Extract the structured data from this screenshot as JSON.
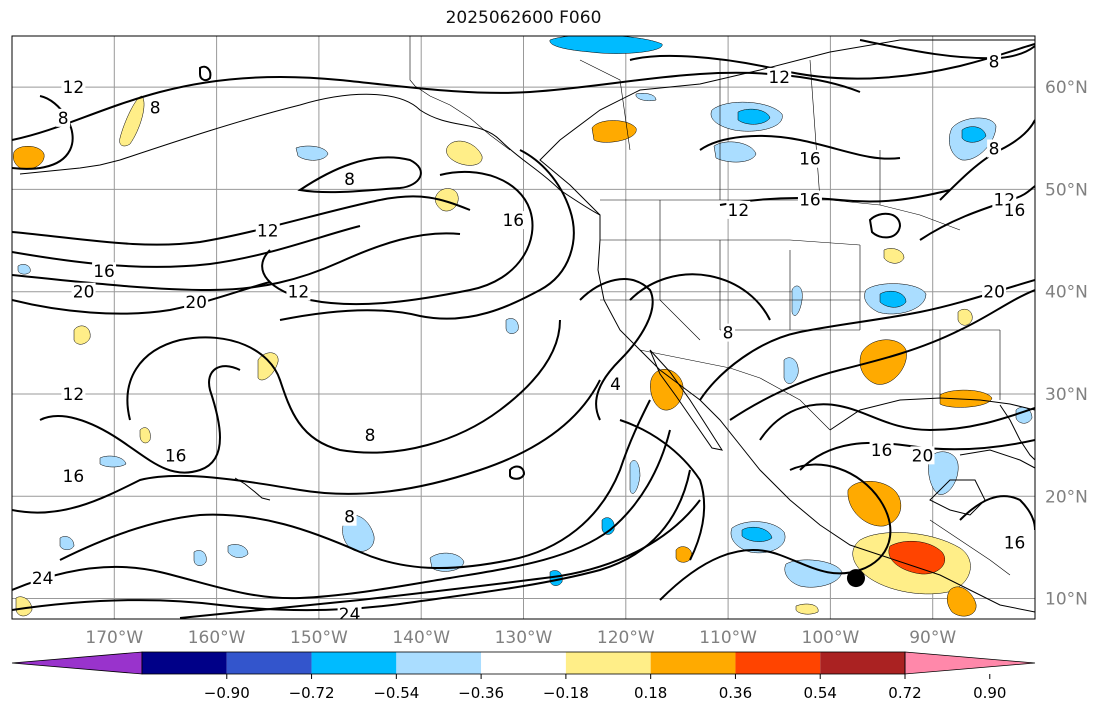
{
  "title": "2025062600 F060",
  "colors": {
    "map_border": "#000000",
    "grid": "#999999",
    "axis_label": "#808080",
    "contour": "#000000",
    "coast": "#000000"
  },
  "map": {
    "projection": "plate-carree",
    "lon_range": [
      -180,
      -80
    ],
    "lat_range": [
      8,
      65
    ],
    "gridlines": true
  },
  "lon_labels": [
    {
      "lon": -170,
      "text": "170°W"
    },
    {
      "lon": -160,
      "text": "160°W"
    },
    {
      "lon": -150,
      "text": "150°W"
    },
    {
      "lon": -140,
      "text": "140°W"
    },
    {
      "lon": -130,
      "text": "130°W"
    },
    {
      "lon": -120,
      "text": "120°W"
    },
    {
      "lon": -110,
      "text": "110°W"
    },
    {
      "lon": -100,
      "text": "100°W"
    },
    {
      "lon": -90,
      "text": "90°W"
    }
  ],
  "lat_labels": [
    {
      "lat": 10,
      "text": "10°N"
    },
    {
      "lat": 20,
      "text": "20°N"
    },
    {
      "lat": 30,
      "text": "30°N"
    },
    {
      "lat": 40,
      "text": "40°N"
    },
    {
      "lat": 50,
      "text": "50°N"
    },
    {
      "lat": 60,
      "text": "60°N"
    }
  ],
  "contour_labels": [
    {
      "text": "12",
      "lon": -174,
      "lat": 60
    },
    {
      "text": "8",
      "lon": -175,
      "lat": 57
    },
    {
      "text": "8",
      "lon": -166,
      "lat": 58
    },
    {
      "text": "8",
      "lon": -147,
      "lat": 51
    },
    {
      "text": "12",
      "lon": -105,
      "lat": 61
    },
    {
      "text": "16",
      "lon": -102,
      "lat": 53
    },
    {
      "text": "16",
      "lon": -102,
      "lat": 49
    },
    {
      "text": "12",
      "lon": -109,
      "lat": 48
    },
    {
      "text": "16",
      "lon": -131,
      "lat": 47
    },
    {
      "text": "12",
      "lon": -155,
      "lat": 46
    },
    {
      "text": "16",
      "lon": -171,
      "lat": 42
    },
    {
      "text": "20",
      "lon": -173,
      "lat": 40
    },
    {
      "text": "20",
      "lon": -162,
      "lat": 39
    },
    {
      "text": "12",
      "lon": -152,
      "lat": 40
    },
    {
      "text": "8",
      "lon": -110,
      "lat": 36
    },
    {
      "text": "4",
      "lon": -121,
      "lat": 31
    },
    {
      "text": "12",
      "lon": -174,
      "lat": 30
    },
    {
      "text": "8",
      "lon": -145,
      "lat": 26
    },
    {
      "text": "16",
      "lon": -164,
      "lat": 24
    },
    {
      "text": "16",
      "lon": -174,
      "lat": 22
    },
    {
      "text": "16",
      "lon": -95,
      "lat": 24.5
    },
    {
      "text": "20",
      "lon": -91,
      "lat": 24
    },
    {
      "text": "8",
      "lon": -147,
      "lat": 18
    },
    {
      "text": "24",
      "lon": -177,
      "lat": 12
    },
    {
      "text": "24",
      "lon": -147,
      "lat": 8.5
    },
    {
      "text": "16",
      "lon": -82,
      "lat": 15.5
    },
    {
      "text": "20",
      "lon": -84,
      "lat": 40
    },
    {
      "text": "8",
      "lon": -84,
      "lat": 54
    },
    {
      "text": "12",
      "lon": -83,
      "lat": 49
    },
    {
      "text": "16",
      "lon": -82,
      "lat": 48
    },
    {
      "text": "8",
      "lon": -84,
      "lat": 62.5
    }
  ],
  "colorbar": {
    "colors": [
      "#9933cc",
      "#000088",
      "#3355cc",
      "#00bbff",
      "#aaddff",
      "#ffffff",
      "#ffee88",
      "#ffaa00",
      "#ff4400",
      "#aa2222",
      "#ff88aa"
    ],
    "ticks": [
      "−0.90",
      "−0.72",
      "−0.54",
      "−0.36",
      "−0.18",
      "0.18",
      "0.36",
      "0.54",
      "0.72",
      "0.90"
    ]
  },
  "marker": {
    "lon": -97.5,
    "lat": 12
  }
}
